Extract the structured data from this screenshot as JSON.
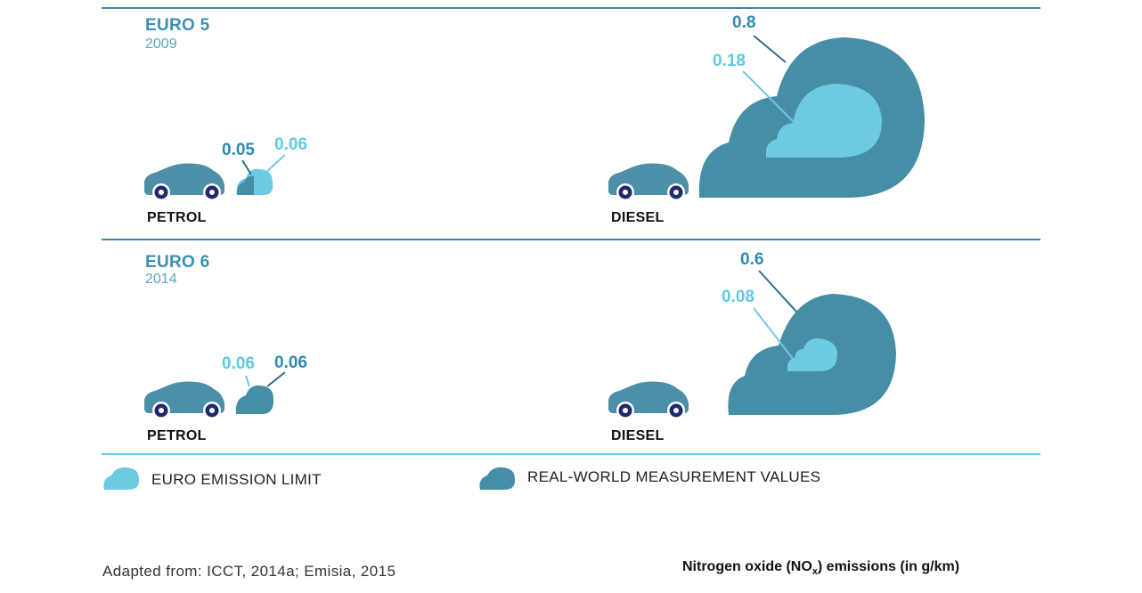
{
  "sections": [
    {
      "title": "EURO 5",
      "year": "2009",
      "petrol": {
        "label": "PETROL",
        "limit": "0.06",
        "real": "0.05"
      },
      "diesel": {
        "label": "DIESEL",
        "limit": "0.18",
        "real": "0.8"
      }
    },
    {
      "title": "EURO 6",
      "year": "2014",
      "petrol": {
        "label": "PETROL",
        "limit": "0.06",
        "real": "0.06"
      },
      "diesel": {
        "label": "DIESEL",
        "limit": "0.08",
        "real": "0.6"
      }
    }
  ],
  "legend": {
    "limit_label": "EURO EMISSION LIMIT",
    "real_label": "REAL-WORLD MEASUREMENT VALUES"
  },
  "footer": {
    "source": "Adapted from: ICCT, 2014a; Emisia, 2015",
    "units_prefix": "Nitrogen oxide (NO",
    "units_sub": "x",
    "units_suffix": ") emissions (in g/km)"
  },
  "colors": {
    "real": "#468ea5",
    "limit": "#6ccbe2",
    "car": "#4d8fa8",
    "wheel": "#1f2a6e"
  }
}
